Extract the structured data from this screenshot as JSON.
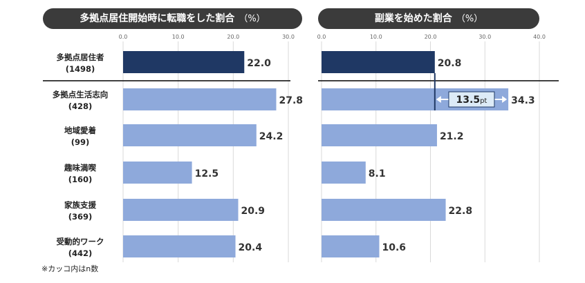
{
  "titles": {
    "left": "多拠点居住開始時に転職をした割合",
    "right": "副業を始めた割合",
    "unit": "（%）"
  },
  "footnote": "※カッコ内はn数",
  "colors": {
    "highlight": "#1f3864",
    "bar": "#8ea9db",
    "grid": "#d9d9d9",
    "text": "#333333"
  },
  "chart_data": [
    {
      "type": "bar",
      "orientation": "horizontal",
      "title": "多拠点居住開始時に転職をした割合",
      "unit": "%",
      "xlim": [
        0,
        30
      ],
      "ticks": [
        "0.0",
        "10.0",
        "20.0",
        "30.0"
      ],
      "categories": [
        {
          "name": "多拠点居住者",
          "n": "(1498)"
        },
        {
          "name": "多拠点生活志向",
          "n": "(428)"
        },
        {
          "name": "地域愛着",
          "n": "(99)"
        },
        {
          "name": "趣味満喫",
          "n": "(160)"
        },
        {
          "name": "家族支援",
          "n": "(369)"
        },
        {
          "name": "受動的ワーク",
          "n": "(442)"
        }
      ],
      "values": [
        22.0,
        27.8,
        24.2,
        12.5,
        20.9,
        20.4
      ],
      "labels": [
        "22.0",
        "27.8",
        "24.2",
        "12.5",
        "20.9",
        "20.4"
      ]
    },
    {
      "type": "bar",
      "orientation": "horizontal",
      "title": "副業を始めた割合",
      "unit": "%",
      "xlim": [
        0,
        40
      ],
      "ticks": [
        "0.0",
        "10.0",
        "20.0",
        "30.0",
        "40.0"
      ],
      "values": [
        20.8,
        34.3,
        21.2,
        8.1,
        22.8,
        10.6
      ],
      "labels": [
        "20.8",
        "34.3",
        "21.2",
        "8.1",
        "22.8",
        "10.6"
      ],
      "annotation": {
        "value": "13.5",
        "unit": "pt",
        "from": 20.8,
        "to": 34.3
      }
    }
  ]
}
